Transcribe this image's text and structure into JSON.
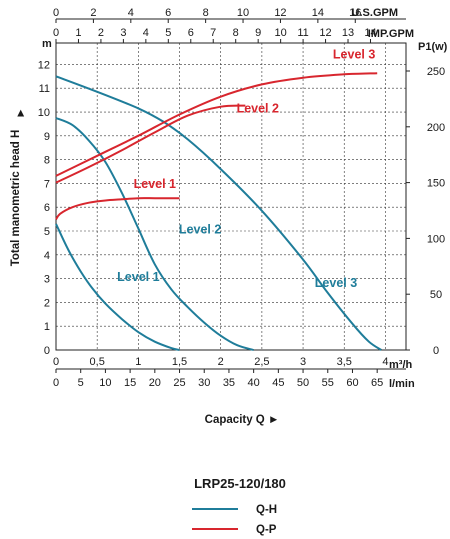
{
  "chart_data": {
    "type": "line",
    "model": "LRP25-120/180",
    "left_axis": {
      "label": "Total manometric head H",
      "unit": "m",
      "ticks": [
        "0",
        "1",
        "2",
        "3",
        "4",
        "5",
        "6",
        "7",
        "8",
        "9",
        "10",
        "11",
        "12"
      ],
      "range": [
        0,
        12.9
      ]
    },
    "right_axis": {
      "label": "P1(w)",
      "ticks": [
        "0",
        "50",
        "100",
        "150",
        "200",
        "250"
      ],
      "range": [
        0,
        250
      ]
    },
    "top_axis_usgpm": {
      "label": "U.S.GPM",
      "ticks": [
        "0",
        "2",
        "4",
        "6",
        "8",
        "10",
        "12",
        "14",
        "16"
      ],
      "values": [
        0,
        2,
        4,
        6,
        8,
        10,
        12,
        14,
        16
      ]
    },
    "top_axis_impgpm": {
      "label": "IMP.GPM",
      "ticks": [
        "0",
        "1",
        "2",
        "3",
        "4",
        "5",
        "6",
        "7",
        "8",
        "9",
        "10",
        "11",
        "12",
        "13",
        "14"
      ],
      "values": [
        0,
        1,
        2,
        3,
        4,
        5,
        6,
        7,
        8,
        9,
        10,
        11,
        12,
        13,
        14
      ]
    },
    "bottom_axis_m3h": {
      "unit": "m³/h",
      "ticks": [
        "0",
        "0,5",
        "1",
        "1,5",
        "2",
        "2,5",
        "3",
        "3,5",
        "4"
      ],
      "values": [
        0,
        0.5,
        1,
        1.5,
        2,
        2.5,
        3,
        3.5,
        4
      ],
      "range": [
        0,
        4.25
      ]
    },
    "bottom_axis_lmin": {
      "unit": "l/min",
      "ticks": [
        "0",
        "5",
        "10",
        "15",
        "20",
        "25",
        "30",
        "35",
        "40",
        "45",
        "50",
        "55",
        "60",
        "65"
      ],
      "values": [
        0,
        5,
        10,
        15,
        20,
        25,
        30,
        35,
        40,
        45,
        50,
        55,
        60,
        65
      ]
    },
    "xlabel": "Capacity Q ►",
    "legend": [
      {
        "label": "Q-H",
        "color": "#1f7d9a"
      },
      {
        "label": "Q-P",
        "color": "#d8262e"
      }
    ],
    "qh_series": [
      {
        "name": "Level 1",
        "label_at": [
          1.0,
          2.9
        ],
        "x": [
          0,
          0.15,
          0.3,
          0.45,
          0.6,
          0.8,
          1.0,
          1.2,
          1.4,
          1.5
        ],
        "y": [
          5.3,
          4.2,
          3.3,
          2.55,
          1.95,
          1.3,
          0.75,
          0.35,
          0.08,
          0
        ]
      },
      {
        "name": "Level 2",
        "label_at": [
          1.75,
          4.9
        ],
        "x": [
          0,
          0.2,
          0.4,
          0.6,
          0.8,
          1.0,
          1.2,
          1.4,
          1.6,
          1.8,
          2.0,
          2.2,
          2.4
        ],
        "y": [
          9.75,
          9.45,
          8.8,
          7.9,
          6.6,
          5.1,
          3.6,
          2.55,
          1.8,
          1.15,
          0.6,
          0.2,
          0
        ]
      },
      {
        "name": "Level 3",
        "label_at": [
          3.4,
          2.65
        ],
        "x": [
          0,
          0.5,
          1.0,
          1.3,
          1.6,
          2.0,
          2.5,
          3.0,
          3.3,
          3.6,
          3.8,
          3.95
        ],
        "y": [
          11.5,
          10.85,
          10.15,
          9.6,
          8.85,
          7.6,
          5.85,
          3.8,
          2.4,
          1.1,
          0.35,
          0
        ]
      }
    ],
    "qp_series": [
      {
        "name": "Level 1",
        "label_at": [
          1.2,
          145
        ],
        "x": [
          0,
          0.05,
          0.2,
          0.4,
          0.6,
          0.8,
          1.0,
          1.2,
          1.4,
          1.5
        ],
        "y": [
          117,
          122,
          128,
          132,
          134,
          135,
          136,
          136,
          136,
          136
        ]
      },
      {
        "name": "Level 2",
        "label_at": [
          2.45,
          213
        ],
        "x": [
          0,
          0.4,
          0.8,
          1.2,
          1.6,
          2.0,
          2.3
        ],
        "y": [
          150,
          164,
          179,
          195,
          210,
          218,
          219
        ]
      },
      {
        "name": "Level 3",
        "label_at": [
          3.62,
          261
        ],
        "x": [
          0,
          0.5,
          1.0,
          1.5,
          2.0,
          2.5,
          3.0,
          3.5,
          3.9
        ],
        "y": [
          156,
          174,
          192,
          211,
          227,
          238,
          244,
          247,
          248
        ]
      }
    ]
  }
}
